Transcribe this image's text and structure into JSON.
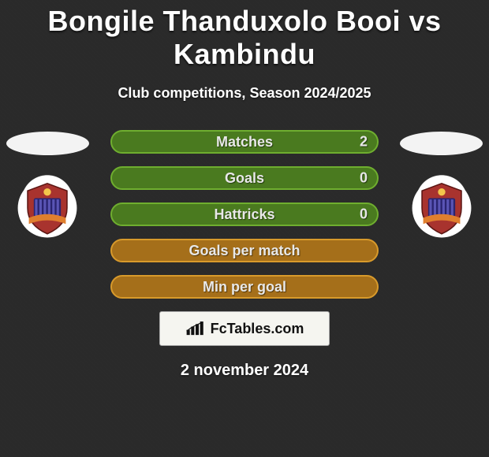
{
  "title": "Bongile Thanduxolo Booi vs Kambindu",
  "subtitle": "Club competitions, Season 2024/2025",
  "date": "2 november 2024",
  "site": "FcTables.com",
  "colors": {
    "row_green_border": "#6fae2f",
    "row_green_fill": "#4a7a1f",
    "row_orange_border": "#d89a2b",
    "row_orange_fill": "#a56f1a",
    "badge_shield_top": "#a8332e",
    "badge_shield_mid": "#2a2470",
    "badge_banner": "#e07f2e"
  },
  "left": {
    "photo_present": false,
    "club": "Chippa United FC"
  },
  "right": {
    "photo_present": false,
    "club": "Chippa United FC"
  },
  "rows": [
    {
      "label": "Matches",
      "l": "",
      "r": "2",
      "style": "green"
    },
    {
      "label": "Goals",
      "l": "",
      "r": "0",
      "style": "green"
    },
    {
      "label": "Hattricks",
      "l": "",
      "r": "0",
      "style": "green"
    },
    {
      "label": "Goals per match",
      "l": "",
      "r": "",
      "style": "orange"
    },
    {
      "label": "Min per goal",
      "l": "",
      "r": "",
      "style": "orange"
    }
  ]
}
